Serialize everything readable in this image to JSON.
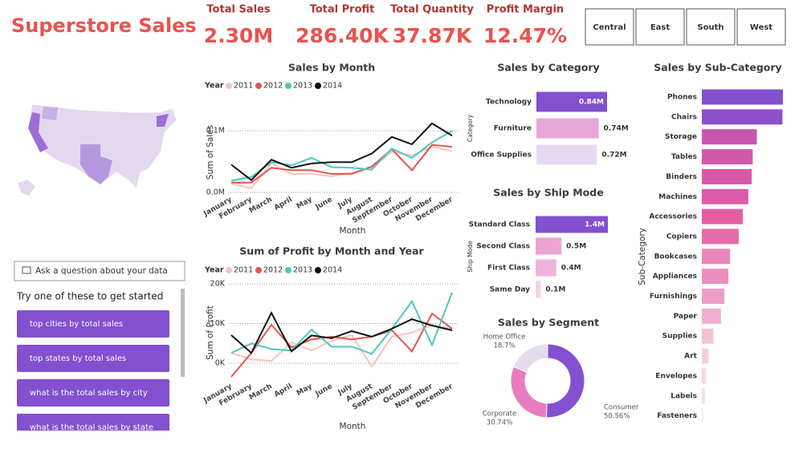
{
  "header": {
    "title": "Superstore Sales"
  },
  "kpis": [
    {
      "label": "Total Sales",
      "value": "2.30M"
    },
    {
      "label": "Total Profit",
      "value": "286.40K"
    },
    {
      "label": "Total Quantity",
      "value": "37.87K"
    },
    {
      "label": "Profit Margin",
      "value": "12.47%"
    }
  ],
  "region_buttons": [
    "Central",
    "East",
    "South",
    "West"
  ],
  "qa": {
    "input": "Ask a question about your data",
    "prompt": "Try one of these to get started",
    "suggestions": [
      "top cities by total sales",
      "top states by total sales",
      "what is the total sales by city",
      "what is the total sales by state"
    ]
  },
  "chart_data": [
    {
      "type": "line",
      "title": "Sales by Month",
      "x_label": "Month",
      "y_label": "Sum of Sales",
      "legend_title": "Year",
      "grid": true,
      "categories": [
        "January",
        "February",
        "March",
        "April",
        "May",
        "June",
        "July",
        "August",
        "September",
        "October",
        "November",
        "December"
      ],
      "ylim": [
        0,
        130000
      ],
      "yticks": [
        {
          "value": 0,
          "label": "0.0M"
        },
        {
          "value": 100000,
          "label": "0.1M"
        }
      ],
      "series": [
        {
          "name": "2011",
          "color": "#f9c3bd",
          "values": [
            14000,
            7000,
            47000,
            30000,
            30000,
            26000,
            32000,
            40000,
            66000,
            60000,
            74000,
            67000
          ]
        },
        {
          "name": "2012",
          "color": "#e8534f",
          "values": [
            16000,
            16000,
            40000,
            36000,
            36000,
            30000,
            30000,
            42000,
            70000,
            36000,
            77000,
            74000
          ]
        },
        {
          "name": "2013",
          "color": "#4fc6c0",
          "values": [
            19000,
            25000,
            49000,
            44000,
            56000,
            41000,
            40000,
            37000,
            71000,
            56000,
            81000,
            100000
          ]
        },
        {
          "name": "2014",
          "color": "#111111",
          "values": [
            45000,
            20000,
            53000,
            40000,
            47000,
            49000,
            49000,
            63000,
            90000,
            78000,
            112000,
            92000
          ]
        }
      ]
    },
    {
      "type": "line",
      "title": "Sum of Profit by Month and Year",
      "x_label": "Month",
      "y_label": "Sum of Profit",
      "legend_title": "Year",
      "grid": true,
      "categories": [
        "January",
        "February",
        "March",
        "April",
        "May",
        "June",
        "July",
        "August",
        "September",
        "October",
        "November",
        "December"
      ],
      "ylim": [
        -4000,
        21000
      ],
      "yticks": [
        {
          "value": 0,
          "label": "0K"
        },
        {
          "value": 10000,
          "label": "10K"
        },
        {
          "value": 20000,
          "label": "20K"
        }
      ],
      "series": [
        {
          "name": "2011",
          "color": "#f9c3bd",
          "values": [
            2600,
            1000,
            600,
            5300,
            3200,
            5700,
            7100,
            -800,
            6700,
            7700,
            9700,
            8700
          ]
        },
        {
          "name": "2012",
          "color": "#e8534f",
          "values": [
            -3400,
            2600,
            9700,
            4000,
            6000,
            6700,
            6000,
            6700,
            8300,
            3000,
            12500,
            8700
          ]
        },
        {
          "name": "2013",
          "color": "#4fc6c0",
          "values": [
            2600,
            5000,
            3600,
            3200,
            8500,
            4200,
            4200,
            2400,
            8700,
            15600,
            4600,
            17800
          ]
        },
        {
          "name": "2014",
          "color": "#111111",
          "values": [
            7100,
            2600,
            12700,
            3000,
            7000,
            6300,
            8100,
            6700,
            8700,
            11100,
            9500,
            8300
          ]
        }
      ]
    },
    {
      "type": "bar",
      "orientation": "horizontal",
      "title": "Sales by Category",
      "y_label": "Category",
      "categories": [
        "Technology",
        "Furniture",
        "Office Supplies"
      ],
      "values": [
        0.84,
        0.74,
        0.72
      ],
      "value_labels": [
        "0.84M",
        "0.74M",
        "0.72M"
      ],
      "colors": [
        "#8350cf",
        "#e8a6d6",
        "#e6daf1"
      ]
    },
    {
      "type": "bar",
      "orientation": "horizontal",
      "title": "Sales by Ship Mode",
      "y_label": "Ship Mode",
      "categories": [
        "Standard Class",
        "Second Class",
        "First Class",
        "Same Day"
      ],
      "values": [
        1.4,
        0.5,
        0.4,
        0.1
      ],
      "value_labels": [
        "1.4M",
        "0.5M",
        "0.4M",
        "0.1M"
      ],
      "colors": [
        "#8350cf",
        "#eca2d2",
        "#efb2da",
        "#f4d3ea"
      ]
    },
    {
      "type": "pie",
      "donut": true,
      "title": "Sales by Segment",
      "categories": [
        "Consumer",
        "Corporate",
        "Home Office"
      ],
      "values": [
        50.56,
        30.74,
        18.7
      ],
      "value_labels": [
        "50.56%",
        "30.74%",
        "18.7%"
      ],
      "colors": [
        "#8350cf",
        "#e97cc0",
        "#e6daf1"
      ]
    },
    {
      "type": "bar",
      "orientation": "horizontal",
      "title": "Sales by Sub-Category",
      "y_label": "Sub-Category",
      "categories": [
        "Phones",
        "Chairs",
        "Storage",
        "Tables",
        "Binders",
        "Machines",
        "Accessories",
        "Copiers",
        "Bookcases",
        "Appliances",
        "Furnishings",
        "Paper",
        "Supplies",
        "Art",
        "Envelopes",
        "Labels",
        "Fasteners"
      ],
      "values": [
        330000,
        328000,
        224000,
        207000,
        203000,
        189000,
        167000,
        150000,
        115000,
        108000,
        92000,
        78000,
        47000,
        27000,
        16000,
        12000,
        3000
      ],
      "colors": [
        "#8350cf",
        "#8c50cc",
        "#c954b1",
        "#d357ab",
        "#d759aa",
        "#dd5ba6",
        "#e45ea3",
        "#e66aa9",
        "#ea86b9",
        "#ec8ebe",
        "#ee9ec7",
        "#f0aed0",
        "#f2c0da",
        "#f3cce1",
        "#f4d5e7",
        "#f5dcec",
        "#f6e4f1"
      ]
    }
  ]
}
